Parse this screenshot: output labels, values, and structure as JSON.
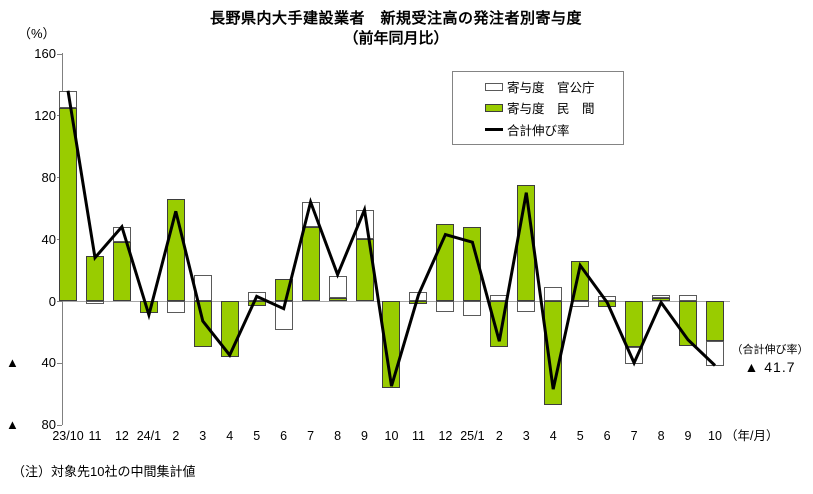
{
  "title": "長野県内大手建設業者　新規受注高の発注者別寄与度",
  "subtitle": "（前年同月比）",
  "y_axis_unit": "（%）",
  "x_axis_unit": "（年/月）",
  "note": "（注）対象先10社の中間集計値",
  "annotation": {
    "label": "（合計伸び率）",
    "value": "▲ 41.7"
  },
  "legend": [
    {
      "label": "寄与度　官公庁",
      "swatch": "white-box"
    },
    {
      "label": "寄与度　民　間",
      "swatch": "green-box"
    },
    {
      "label": "合計伸び率",
      "swatch": "black-line"
    }
  ],
  "colors": {
    "private_fill": "#99CC00",
    "public_fill": "#FFFFFF",
    "bar_border": "#3D3D3D",
    "total_line": "#000000",
    "zero_line": "#A6A6A6",
    "axis": "#808080"
  },
  "chart_data": {
    "type": "bar",
    "subtype": "stacked-contribution-bars-with-total-line",
    "title": "長野県内大手建設業者 新規受注高の発注者別寄与度（前年同月比）",
    "xlabel": "年/月",
    "ylabel": "%",
    "ylim": [
      -80,
      160
    ],
    "yticks": [
      160,
      120,
      80,
      40,
      0,
      -40,
      -80
    ],
    "ytick_labels": [
      "160",
      "120",
      "80",
      "40",
      "0",
      "▲ 40",
      "▲ 80"
    ],
    "grid": "zero-line-only",
    "legend_position": "upper-center-inside",
    "categories": [
      "23/10",
      "11",
      "12",
      "24/1",
      "2",
      "3",
      "4",
      "5",
      "6",
      "7",
      "8",
      "9",
      "10",
      "11",
      "12",
      "25/1",
      "2",
      "3",
      "4",
      "5",
      "6",
      "7",
      "8",
      "9",
      "10"
    ],
    "series": [
      {
        "name": "寄与度 官公庁",
        "type": "bar",
        "color": "#FFFFFF",
        "values": [
          11,
          -2,
          10,
          0,
          -8,
          17,
          0,
          6,
          -19,
          16,
          14,
          19,
          0,
          6,
          -7,
          -10,
          4,
          -7,
          9,
          -4,
          3,
          -11,
          2,
          4,
          -16
        ]
      },
      {
        "name": "寄与度 民間",
        "type": "bar",
        "color": "#99CC00",
        "values": [
          125,
          29,
          38,
          -8,
          66,
          -30,
          -36,
          -3,
          14,
          48,
          2,
          40,
          -56,
          -2,
          50,
          48,
          -30,
          75,
          -67,
          26,
          -4,
          -30,
          2,
          -29,
          -26
        ]
      },
      {
        "name": "合計伸び率",
        "type": "line",
        "color": "#000000",
        "values": [
          136,
          28,
          48,
          -9,
          58,
          -13,
          -35,
          3,
          -5,
          64,
          17,
          59,
          -55,
          4,
          43,
          38,
          -26,
          70,
          -57,
          23,
          -1,
          -40,
          -1,
          -25,
          -41.7
        ]
      }
    ],
    "last_point_annotation": "合計伸び率 ▲ 41.7"
  }
}
